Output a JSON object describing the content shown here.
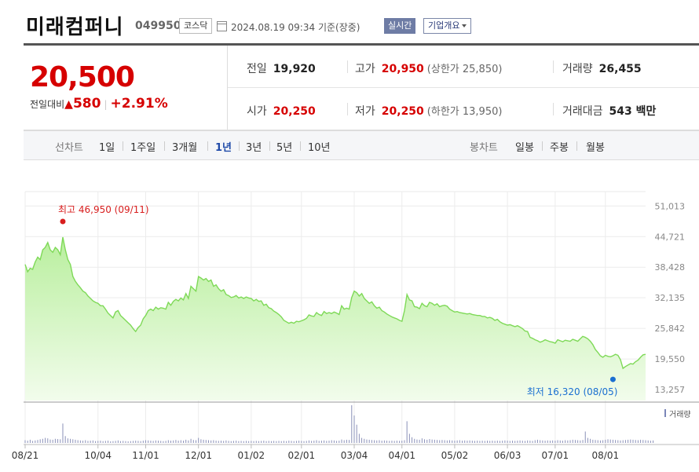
{
  "header": {
    "company_name": "미래컴퍼니",
    "stock_code": "049950",
    "market": "코스닥",
    "datetime": "2024.08.19 09:34",
    "basis": "기준(장중)",
    "realtime_label": "실시간",
    "overview_label": "기업개요"
  },
  "price": {
    "current": "20,500",
    "change_label": "전일대비",
    "change_arrow": "▲",
    "change_amount": "580",
    "change_rate": "+2.91%"
  },
  "stats": {
    "prev_close_label": "전일",
    "prev_close": "19,920",
    "high_label": "고가",
    "high": "20,950",
    "upper_limit": "(상한가 25,850)",
    "volume_label": "거래량",
    "volume": "26,455",
    "open_label": "시가",
    "open": "20,250",
    "low_label": "저가",
    "low": "20,250",
    "lower_limit": "(하한가 13,950)",
    "turnover_label": "거래대금",
    "turnover": "543 백만"
  },
  "tabs": {
    "line_chart_label": "선차트",
    "periods": [
      "1일",
      "1주일",
      "3개월",
      "1년",
      "3년",
      "5년",
      "10년"
    ],
    "active_period": "1년",
    "candle_chart_label": "봉차트",
    "candle_types": [
      "일봉",
      "주봉",
      "월봉"
    ]
  },
  "colors": {
    "price_up": "#d60000",
    "line": "#7ed957",
    "area_top": "#b9ef9e",
    "area_bottom": "#f2fcec",
    "low_marker": "#1a6fd1",
    "active_tab": "#1f4aa8"
  },
  "chart_data": {
    "type": "area",
    "y_ticks": [
      51013,
      44721,
      38428,
      32135,
      25842,
      19550,
      13257
    ],
    "y_tick_labels": [
      "51,013",
      "44,721",
      "38,428",
      "32,135",
      "25,842",
      "19,550",
      "13,257"
    ],
    "ylim": [
      11000,
      53000
    ],
    "x_ticks": [
      "08/21",
      "10/04",
      "11/01",
      "12/01",
      "01/02",
      "02/01",
      "03/04",
      "04/01",
      "05/02",
      "06/03",
      "07/01",
      "08/01"
    ],
    "x_tick_index": [
      0,
      29,
      48,
      69,
      90,
      110,
      131,
      150,
      171,
      192,
      211,
      231
    ],
    "grid": true,
    "max_annotation": {
      "label": "최고 46,950 (09/11)",
      "index": 15,
      "value": 44600
    },
    "min_annotation": {
      "label": "최저 16,320 (08/05)",
      "index": 234,
      "value": 16320
    },
    "volume_label": "거래량",
    "series": [
      {
        "values": [
          39000,
          37500,
          38200,
          38000,
          39500,
          40500,
          40000,
          42000,
          42500,
          43500,
          42000,
          41500,
          42500,
          42000,
          41000,
          44600,
          42000,
          40000,
          39000,
          36500,
          35500,
          34800,
          34200,
          33500,
          33200,
          32500,
          32000,
          31500,
          31200,
          31000,
          30500,
          30500,
          29800,
          29000,
          28500,
          28000,
          29200,
          29500,
          28500,
          28000,
          27500,
          27000,
          26500,
          25800,
          25200,
          26000,
          26500,
          27800,
          28500,
          29500,
          29800,
          29500,
          30200,
          29800,
          30100,
          30000,
          29800,
          31200,
          30600,
          31400,
          31800,
          31500,
          32100,
          31700,
          33000,
          32000,
          34500,
          34000,
          33500,
          36500,
          36200,
          35800,
          36100,
          35500,
          35800,
          34500,
          34800,
          34000,
          33500,
          33800,
          32800,
          32600,
          32200,
          32300,
          32600,
          32100,
          32300,
          32000,
          32300,
          32100,
          32000,
          31500,
          31800,
          31400,
          31500,
          30600,
          30800,
          30100,
          29900,
          29400,
          29100,
          28700,
          28200,
          27500,
          27200,
          26900,
          27100,
          26900,
          27300,
          27200,
          27400,
          27600,
          27900,
          28600,
          28400,
          28300,
          29100,
          28700,
          28500,
          29300,
          28900,
          29100,
          28900,
          29200,
          29000,
          28700,
          30500,
          29800,
          30000,
          29800,
          32200,
          33500,
          33200,
          32500,
          33000,
          32000,
          31500,
          31000,
          31300,
          30500,
          30000,
          30200,
          29500,
          29200,
          28800,
          28500,
          28200,
          28000,
          27800,
          27500,
          27300,
          29500,
          32800,
          31700,
          31500,
          30300,
          30200,
          29900,
          31000,
          30500,
          30300,
          31200,
          31000,
          30600,
          30900,
          30300,
          30500,
          30600,
          30400,
          29800,
          29500,
          29200,
          29300,
          29100,
          29000,
          28900,
          28800,
          28900,
          28700,
          28600,
          28500,
          28500,
          28300,
          28300,
          28000,
          28100,
          27900,
          27500,
          27700,
          27200,
          26900,
          26700,
          26500,
          26600,
          26400,
          26200,
          26400,
          26100,
          25800,
          25300,
          25200,
          24000,
          23800,
          23500,
          23300,
          23000,
          23200,
          23500,
          23300,
          23100,
          23000,
          22800,
          23500,
          23300,
          23100,
          23400,
          23300,
          23200,
          23600,
          23400,
          23200,
          23700,
          24200,
          24000,
          23700,
          23200,
          22500,
          21500,
          20900,
          20200,
          19900,
          20300,
          20100,
          20000,
          20200,
          20500,
          20300,
          19400,
          17600,
          18000,
          18300,
          18600,
          18500,
          19000,
          19300,
          19900,
          20400,
          20500
        ]
      }
    ],
    "volume": [
      12,
      10,
      14,
      9,
      11,
      13,
      16,
      18,
      22,
      20,
      15,
      14,
      18,
      17,
      16,
      85,
      30,
      20,
      18,
      16,
      14,
      12,
      11,
      10,
      12,
      9,
      10,
      11,
      8,
      9,
      10,
      8,
      9,
      10,
      7,
      8,
      9,
      11,
      8,
      9,
      8,
      7,
      8,
      9,
      10,
      9,
      8,
      10,
      12,
      11,
      10,
      9,
      11,
      10,
      9,
      8,
      9,
      12,
      10,
      11,
      13,
      10,
      12,
      10,
      14,
      11,
      18,
      13,
      12,
      22,
      16,
      14,
      13,
      12,
      11,
      12,
      10,
      9,
      10,
      9,
      11,
      9,
      8,
      9,
      10,
      8,
      9,
      8,
      9,
      8,
      9,
      8,
      9,
      8,
      9,
      10,
      8,
      9,
      8,
      9,
      8,
      9,
      8,
      9,
      8,
      10,
      9,
      8,
      9,
      10,
      9,
      8,
      9,
      11,
      9,
      10,
      12,
      9,
      10,
      11,
      9,
      10,
      12,
      11,
      9,
      10,
      15,
      12,
      14,
      13,
      165,
      120,
      80,
      40,
      22,
      18,
      15,
      14,
      13,
      12,
      11,
      12,
      10,
      11,
      10,
      9,
      10,
      9,
      10,
      9,
      10,
      12,
      95,
      40,
      25,
      18,
      15,
      14,
      20,
      16,
      14,
      17,
      15,
      14,
      13,
      12,
      13,
      12,
      11,
      12,
      11,
      10,
      11,
      12,
      10,
      11,
      10,
      11,
      10,
      9,
      10,
      9,
      10,
      9,
      10,
      9,
      10,
      9,
      10,
      9,
      10,
      11,
      10,
      9,
      10,
      9,
      10,
      11,
      10,
      9,
      11,
      10,
      9,
      12,
      14,
      12,
      11,
      10,
      11,
      10,
      11,
      10,
      12,
      11,
      10,
      12,
      11,
      12,
      14,
      13,
      12,
      11,
      13,
      50,
      22,
      18,
      14,
      13,
      12,
      11,
      12,
      14,
      16,
      15,
      14,
      13,
      12,
      11,
      12,
      13,
      14,
      15,
      14,
      13,
      12,
      14,
      13,
      12,
      11,
      10,
      11
    ]
  }
}
